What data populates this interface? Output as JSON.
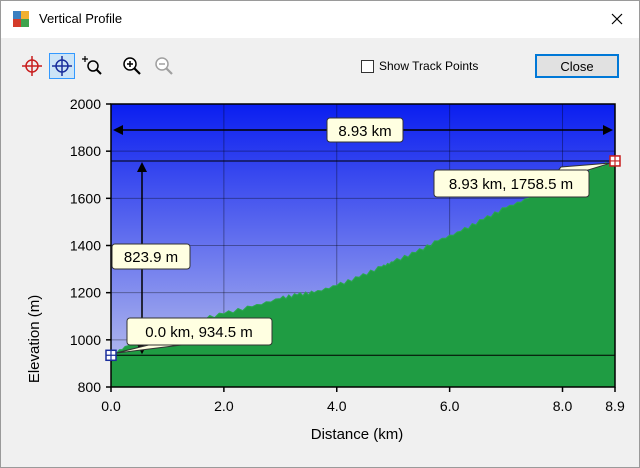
{
  "window": {
    "title": "Vertical Profile",
    "icon": "map-app-icon",
    "close_icon": "close-icon"
  },
  "toolbar": {
    "tools": [
      {
        "name": "crosshair-tool",
        "icon": "red-crosshair-icon",
        "active": false
      },
      {
        "name": "blue-crosshair-tool",
        "icon": "blue-crosshair-icon",
        "active": true
      },
      {
        "name": "zoom-area-tool",
        "icon": "zoom-area-icon",
        "active": false
      },
      {
        "name": "zoom-in-tool",
        "icon": "zoom-in-icon",
        "active": false
      },
      {
        "name": "zoom-out-tool",
        "icon": "zoom-out-icon",
        "active": false
      }
    ],
    "show_track_points_label": "Show Track Points",
    "show_track_points_checked": false,
    "close_label": "Close"
  },
  "chart_data": {
    "type": "area",
    "xlabel": "Distance   (km)",
    "ylabel": "Elevation (m)",
    "xlim": [
      0,
      8.93
    ],
    "ylim": [
      800,
      2000
    ],
    "x_ticks": [
      "0.0",
      "2.0",
      "4.0",
      "6.0",
      "8.0",
      "8.9"
    ],
    "x_tick_values": [
      0,
      2,
      4,
      6,
      8,
      8.93
    ],
    "y_ticks": [
      "800",
      "1000",
      "1200",
      "1400",
      "1600",
      "1800",
      "2000"
    ],
    "y_tick_values": [
      800,
      1000,
      1200,
      1400,
      1600,
      1800,
      2000
    ],
    "profile": {
      "x": [
        0,
        0.3,
        0.6,
        1.0,
        1.5,
        2.0,
        2.5,
        3.0,
        3.3,
        3.6,
        4.0,
        4.4,
        4.8,
        5.0,
        5.4,
        5.8,
        6.2,
        6.6,
        7.0,
        7.4,
        7.8,
        8.2,
        8.6,
        8.93
      ],
      "y": [
        934.5,
        975,
        1010,
        1050,
        1080,
        1110,
        1140,
        1175,
        1190,
        1200,
        1230,
        1265,
        1310,
        1330,
        1370,
        1420,
        1460,
        1510,
        1560,
        1600,
        1645,
        1690,
        1730,
        1758.5
      ]
    },
    "start_point": {
      "x": 0,
      "y": 934.5,
      "label": "0.0 km, 934.5 m"
    },
    "end_point": {
      "x": 8.93,
      "y": 1758.5,
      "label": "8.93 km, 1758.5 m"
    },
    "distance_annotation": "8.93 km",
    "elevation_gain_annotation": "823.9 m",
    "colors": {
      "sky_top": "#0a1ef0",
      "sky_bottom": "#c2c8ec",
      "terrain": "#1f9c43",
      "terrain_edge": "#2aa84e",
      "callout_bg": "#ffffe1"
    },
    "grid": true
  }
}
